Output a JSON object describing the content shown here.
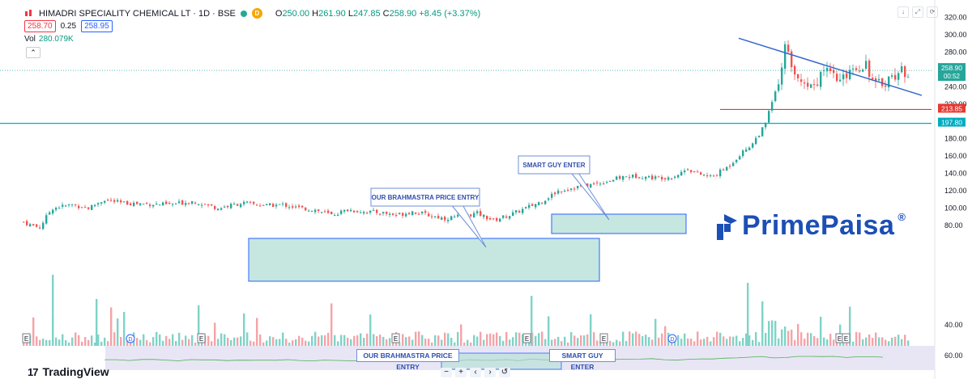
{
  "header": {
    "symbol": "HIMADRI SPECIALITY CHEMICAL LT · 1D · BSE",
    "d_badge": "D",
    "ohlc": [
      {
        "key": "O",
        "value": "250.00"
      },
      {
        "key": "H",
        "value": "261.90"
      },
      {
        "key": "L",
        "value": "247.85"
      },
      {
        "key": "C",
        "value": "258.90 +8.45 (+3.37%)"
      }
    ],
    "bid": "258.70",
    "spread": "0.25",
    "ask": "258.95",
    "vol_label": "Vol",
    "vol_value": "280.079K",
    "collapse_icon": "chevron-up-icon",
    "icons": [
      "arrow-down-icon",
      "expand-icon",
      "refresh-icon"
    ]
  },
  "colors": {
    "up": "#26a69a",
    "down": "#ef5350",
    "up_vol": "#7fd3c8",
    "down_vol": "#f5a3a8",
    "trendline": "#3366cc",
    "support_red": "#e53935",
    "support_cyan": "#00acc1",
    "box_fill": "#b2dfd6",
    "box_border": "#2962ff",
    "brand": "#1c4fb5"
  },
  "chart_data": {
    "type": "candlestick",
    "title": "HIMADRI SPECIALITY CHEMICAL LT · 1D · BSE",
    "ylim": [
      60,
      325
    ],
    "y_ticks": [
      "320.00",
      "300.00",
      "280.00",
      "240.00",
      "220.00",
      "180.00",
      "160.00",
      "140.00",
      "120.00",
      "100.00",
      "80.00",
      "60.00",
      "40.00"
    ],
    "last_price": "258.90",
    "countdown": "00:52",
    "levels": [
      {
        "name": "red support",
        "value": 213.85,
        "label": "213.85"
      },
      {
        "name": "cyan support",
        "value": 197.8,
        "label": "197.80"
      }
    ],
    "trendline": {
      "from": 296,
      "to": 258
    },
    "close_path": [
      [
        0,
        84
      ],
      [
        10,
        80
      ],
      [
        20,
        78
      ],
      [
        35,
        100
      ],
      [
        60,
        104
      ],
      [
        80,
        100
      ],
      [
        100,
        110
      ],
      [
        120,
        106
      ],
      [
        150,
        105
      ],
      [
        180,
        104
      ],
      [
        210,
        108
      ],
      [
        240,
        100
      ],
      [
        270,
        106
      ],
      [
        300,
        103
      ],
      [
        320,
        104
      ],
      [
        340,
        100
      ],
      [
        360,
        98
      ],
      [
        380,
        92
      ],
      [
        400,
        98
      ],
      [
        420,
        96
      ],
      [
        440,
        95
      ],
      [
        460,
        92
      ],
      [
        480,
        96
      ],
      [
        500,
        92
      ],
      [
        520,
        88
      ],
      [
        540,
        91
      ],
      [
        560,
        94
      ],
      [
        580,
        86
      ],
      [
        600,
        92
      ],
      [
        620,
        100
      ],
      [
        640,
        108
      ],
      [
        660,
        120
      ],
      [
        680,
        124
      ],
      [
        700,
        127
      ],
      [
        720,
        131
      ],
      [
        740,
        136
      ],
      [
        760,
        137
      ],
      [
        780,
        135
      ],
      [
        800,
        136
      ],
      [
        810,
        140
      ],
      [
        820,
        146
      ],
      [
        830,
        140
      ],
      [
        850,
        136
      ],
      [
        870,
        148
      ],
      [
        880,
        158
      ],
      [
        900,
        175
      ],
      [
        915,
        195
      ],
      [
        925,
        225
      ],
      [
        935,
        250
      ],
      [
        940,
        285
      ],
      [
        945,
        275
      ],
      [
        950,
        248
      ],
      [
        960,
        250
      ],
      [
        970,
        240
      ],
      [
        980,
        248
      ],
      [
        990,
        257
      ],
      [
        1000,
        250
      ],
      [
        1010,
        245
      ],
      [
        1020,
        262
      ],
      [
        1030,
        262
      ],
      [
        1040,
        268
      ],
      [
        1045,
        255
      ],
      [
        1050,
        240
      ],
      [
        1060,
        245
      ],
      [
        1070,
        250
      ],
      [
        1080,
        257
      ],
      [
        1095,
        258
      ]
    ],
    "annotations": [
      {
        "text": "OUR BRAHMASTRA PRICE ENTRY"
      },
      {
        "text": "SMART GUY ENTER"
      }
    ],
    "event_markers": [
      "E",
      "D",
      "E",
      "E",
      "E",
      "E",
      "D",
      "E",
      "E",
      "E"
    ],
    "volume_ticks": [
      "60.00",
      "40.00"
    ]
  },
  "watermark": {
    "brand": "PrimePaisa",
    "reg": "®"
  },
  "mini_callouts": [
    "OUR BRAHMASTRA PRICE ENTRY",
    "SMART GUY ENTER"
  ],
  "footer": {
    "logo_mark": "17",
    "logo_text": "TradingView"
  },
  "zoom_controls": [
    "−",
    "+",
    "‹",
    "›",
    "↺"
  ]
}
